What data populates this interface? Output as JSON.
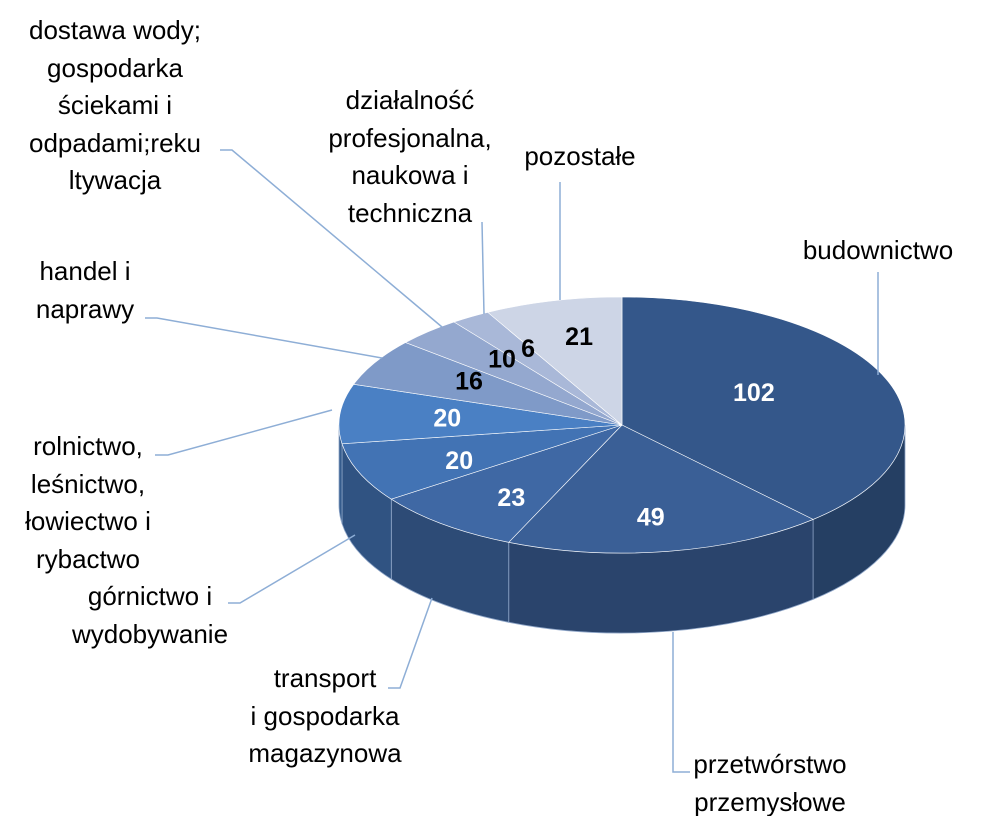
{
  "chart_data": {
    "type": "pie3d",
    "categories": [
      "budownictwo",
      "przetwórstwo\nprzemysłowe",
      "transport\ni gospodarka\nmagazynowa",
      "górnictwo i\nwydobywanie",
      "rolnictwo,\nleśnictwo,\nłowiectwo i\nrybactwo",
      "handel i\nnaprawy",
      "dostawa wody;\ngospodarka\nściekami i\nodpadami;reku\nltywacja",
      "działalność\nprofesjonalna,\nnaukowa i\ntechniczna",
      "pozostałe"
    ],
    "values": [
      102,
      49,
      23,
      20,
      20,
      16,
      10,
      6,
      21
    ],
    "colors": [
      "#34578a",
      "#3a5f96",
      "#3f68a4",
      "#4273b4",
      "#4a80c4",
      "#7f9ac8",
      "#94a8cf",
      "#a9b8d8",
      "#cdd5e6"
    ]
  }
}
